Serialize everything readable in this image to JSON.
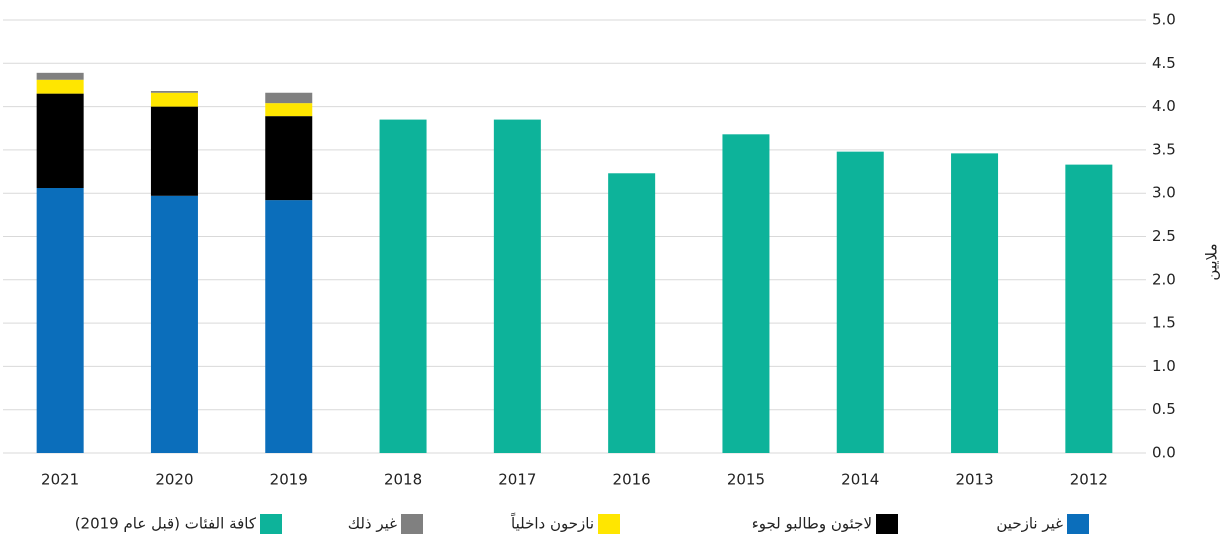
{
  "chart_data": {
    "type": "stacked_bar",
    "y_axis_label": "ملايين",
    "categories": [
      "2021",
      "2020",
      "2019",
      "2018",
      "2017",
      "2016",
      "2015",
      "2014",
      "2013",
      "2012"
    ],
    "series": [
      {
        "name": "غير نازحين",
        "color": "#0b6ebb",
        "values": [
          3.06,
          2.97,
          2.92,
          null,
          null,
          null,
          null,
          null,
          null,
          null
        ]
      },
      {
        "name": "لاجئون وطالبو لجوء",
        "color": "#000000",
        "values": [
          1.09,
          1.03,
          0.97,
          null,
          null,
          null,
          null,
          null,
          null,
          null
        ]
      },
      {
        "name": "نازحون داخلياً",
        "color": "#ffe600",
        "values": [
          0.16,
          0.16,
          0.15,
          null,
          null,
          null,
          null,
          null,
          null,
          null
        ]
      },
      {
        "name": "غير ذلك",
        "color": "#808080",
        "values": [
          0.08,
          0.02,
          0.12,
          null,
          null,
          null,
          null,
          null,
          null,
          null
        ]
      },
      {
        "name": "كافة الفئات (قبل عام 2019)",
        "color": "#0db39a",
        "values": [
          null,
          null,
          null,
          3.85,
          3.85,
          3.23,
          3.68,
          3.48,
          3.46,
          3.33
        ]
      }
    ],
    "ylim": [
      0,
      5
    ],
    "yticks": [
      {
        "value": 0,
        "label": "0.0"
      },
      0.5,
      {
        "value": 1,
        "label": "1.0"
      },
      1.5,
      {
        "value": 2,
        "label": "2.0"
      },
      2.5,
      {
        "value": 3,
        "label": "3.0"
      },
      3.5,
      {
        "value": 4,
        "label": "4.0"
      },
      4.5,
      {
        "value": 5,
        "label": "5.0"
      }
    ],
    "grid": true
  }
}
